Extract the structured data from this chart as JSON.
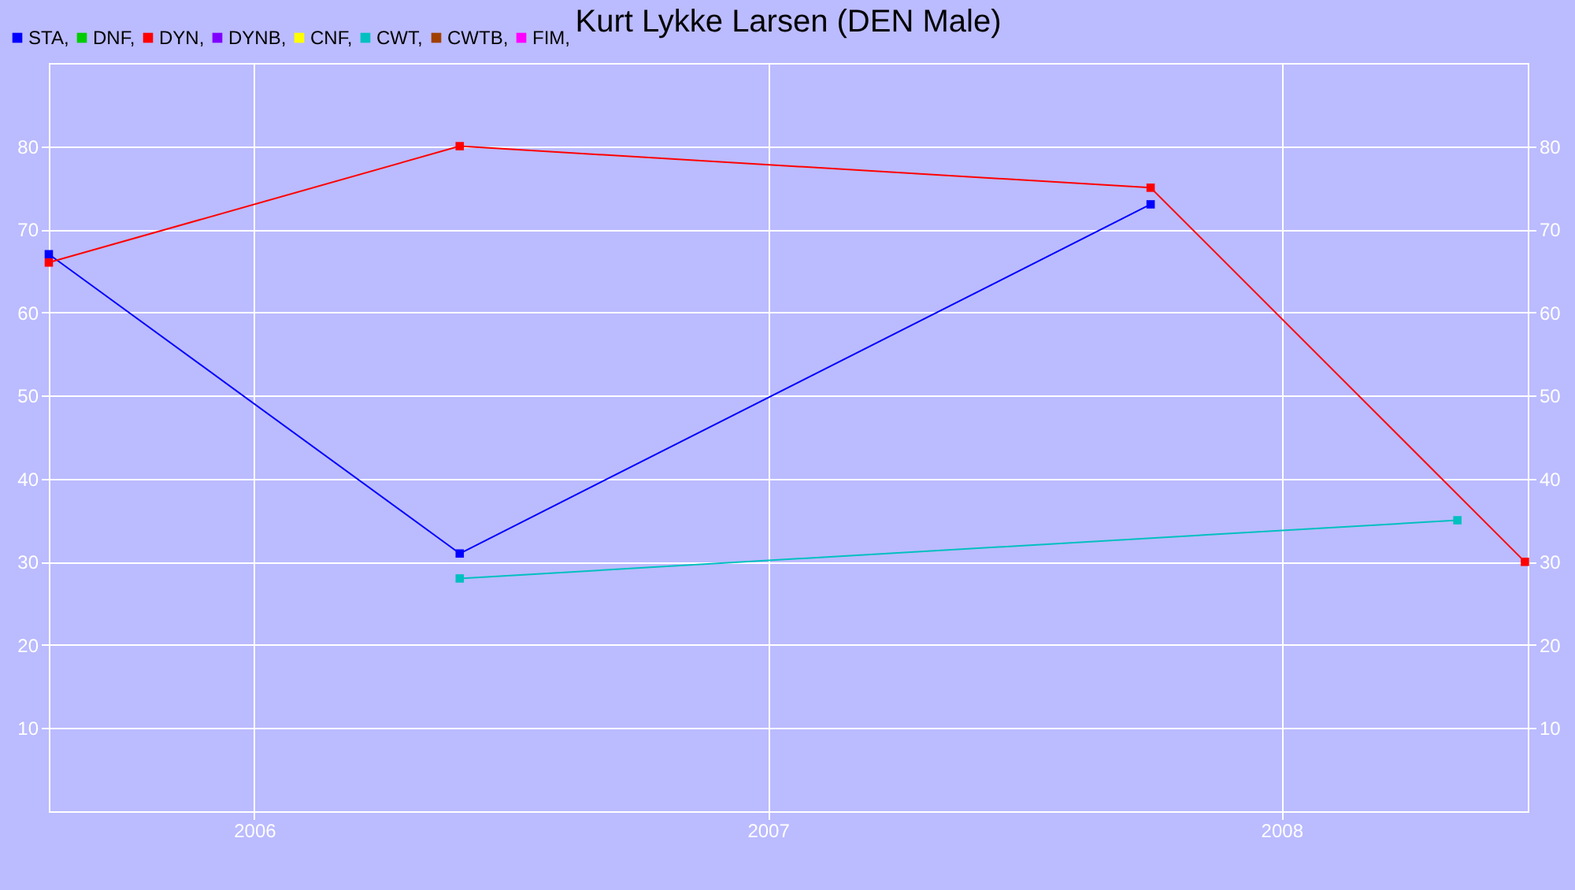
{
  "chart_data": {
    "type": "line",
    "title": "Kurt Lykke Larsen (DEN Male)",
    "series": [
      {
        "name": "STA,",
        "color": "#0000ff",
        "x": [
          "2005-08-08",
          "2006-05-27",
          "2007-09-30"
        ],
        "values": [
          67,
          31,
          73
        ]
      },
      {
        "name": "DNF,",
        "color": "#00cc00"
      },
      {
        "name": "DYN,",
        "color": "#ff0000",
        "x": [
          "2005-08-08",
          "2006-05-27",
          "2007-09-30",
          "2008-06-22"
        ],
        "values": [
          66,
          80,
          75,
          30
        ]
      },
      {
        "name": "DYNB,",
        "color": "#8000ff"
      },
      {
        "name": "CNF,",
        "color": "#ffff00"
      },
      {
        "name": "CWT,",
        "color": "#00c0c0",
        "x": [
          "2006-05-27",
          "2008-05-05"
        ],
        "values": [
          28,
          35
        ]
      },
      {
        "name": "CWTB,",
        "color": "#a04000"
      },
      {
        "name": "FIM,",
        "color": "#ff00ff"
      }
    ],
    "xlim": [
      "2005-08-08",
      "2008-06-24"
    ],
    "xticks": [
      "2006",
      "2007",
      "2008"
    ],
    "ylim": [
      0,
      90
    ],
    "yticks": [
      10,
      20,
      30,
      40,
      50,
      60,
      70,
      80
    ],
    "y2lim": [
      0,
      90
    ],
    "y2ticks": [
      10,
      20,
      30,
      40,
      50,
      60,
      70,
      80
    ],
    "grid": true,
    "legend": "top left",
    "marker": "square",
    "line_style": "solid"
  }
}
